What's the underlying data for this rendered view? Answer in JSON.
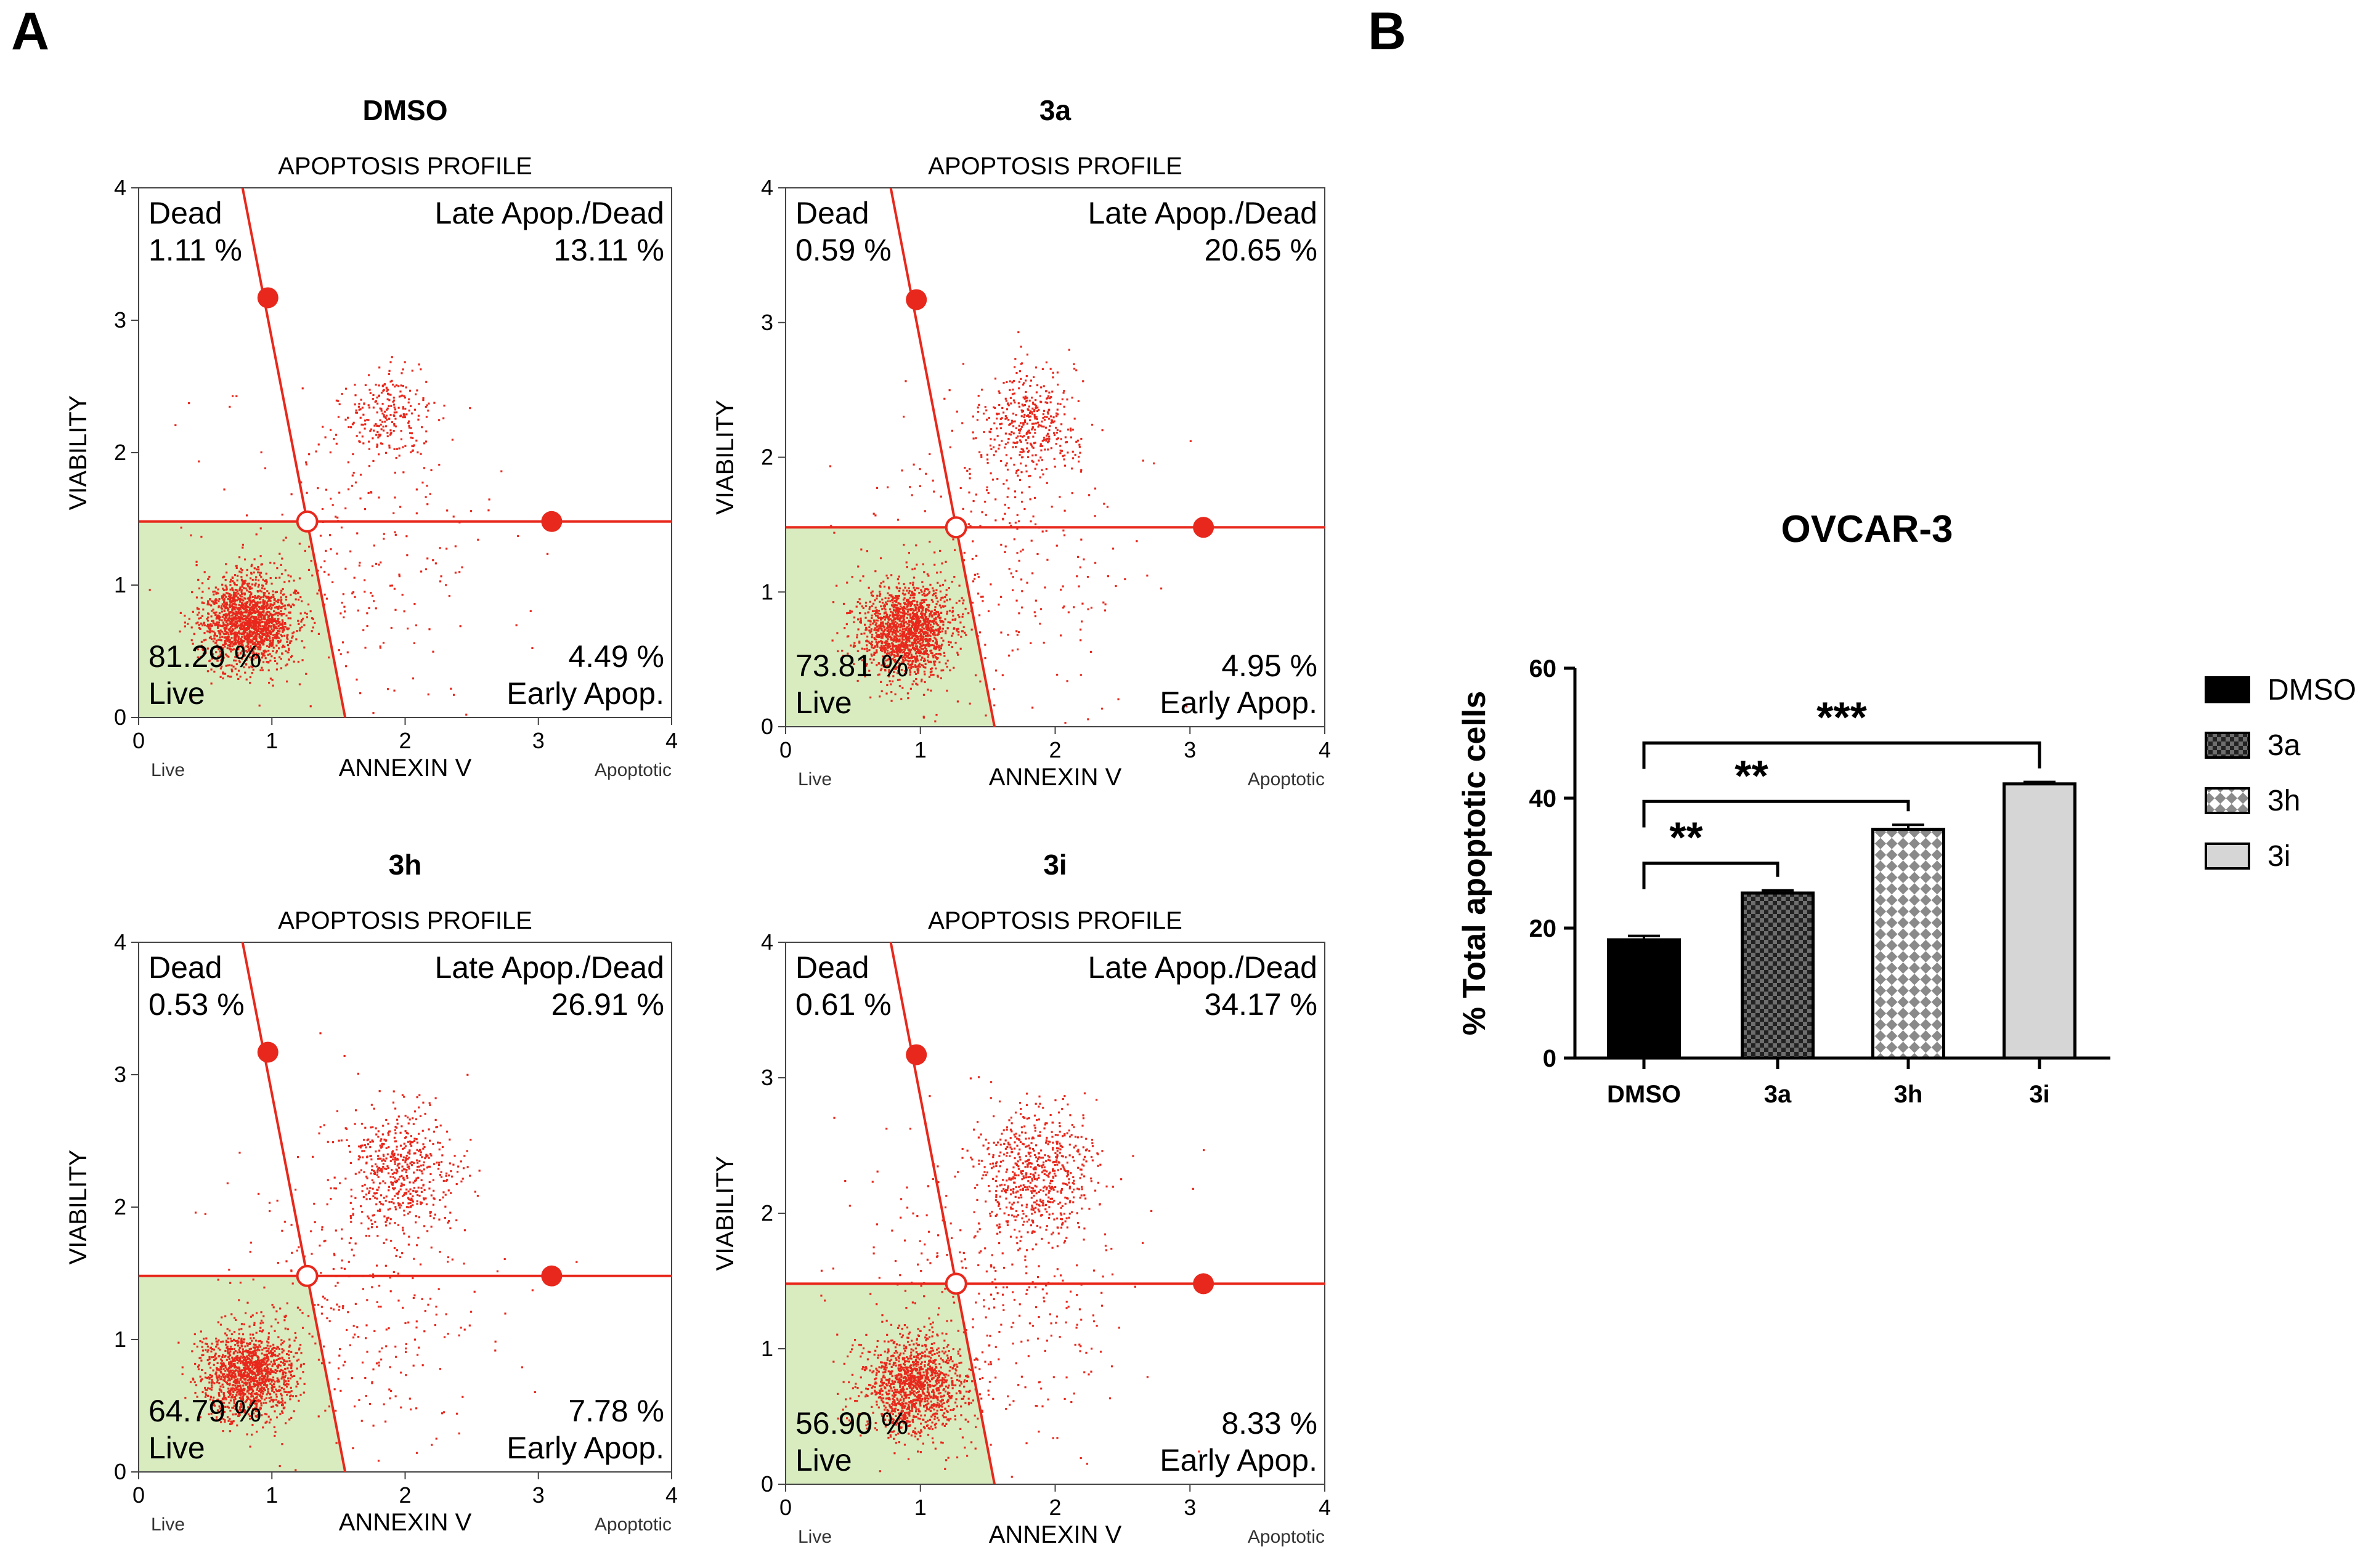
{
  "panel_letters": {
    "a": "A",
    "b": "B"
  },
  "colors": {
    "dot": "#e8281c",
    "gate_line": "#e8281c",
    "live_fill": "#d8ecc0",
    "bar_dmso": "#000000",
    "bar_3i": "#d6d6d6",
    "axis": "#000000"
  },
  "chart_data": [
    {
      "type": "scatter",
      "panel": "A",
      "title": "DMSO",
      "subtitle": "APOPTOSIS PROFILE",
      "xlabel": "ANNEXIN V",
      "ylabel": "VIABILITY",
      "x_left_label": "Live",
      "x_right_label": "Apoptotic",
      "xlim": [
        0,
        4
      ],
      "ylim": [
        0,
        4
      ],
      "xticks": [
        0,
        1,
        2,
        3,
        4
      ],
      "yticks": [
        0,
        1,
        2,
        3,
        4
      ],
      "gate": {
        "cross": [
          1.27,
          1.48
        ],
        "line_top": [
          0.78,
          4.0
        ],
        "line_bottom": [
          1.55,
          0.0
        ],
        "marker_upper": [
          0.97,
          3.17
        ],
        "marker_right": [
          3.1,
          1.48
        ]
      },
      "quadrants": {
        "dead": {
          "name": "Dead",
          "value": "1.11 %"
        },
        "late": {
          "name": "Late Apop./Dead",
          "value": "13.11 %"
        },
        "live": {
          "name": "Live",
          "value": "81.29 %"
        },
        "early": {
          "name": "Early Apop.",
          "value": "4.49 %"
        }
      },
      "populations": [
        {
          "cx": 0.82,
          "cy": 0.73,
          "sx": 0.17,
          "sy": 0.17,
          "n": 1700
        },
        {
          "cx": 1.88,
          "cy": 2.3,
          "sx": 0.16,
          "sy": 0.16,
          "n": 230
        },
        {
          "cx": 1.55,
          "cy": 1.25,
          "sx": 0.55,
          "sy": 0.6,
          "n": 260
        }
      ],
      "seed": 11
    },
    {
      "type": "scatter",
      "panel": "A",
      "title": "3a",
      "subtitle": "APOPTOSIS PROFILE",
      "xlabel": "ANNEXIN V",
      "ylabel": "VIABILITY",
      "x_left_label": "Live",
      "x_right_label": "Apoptotic",
      "xlim": [
        0,
        4
      ],
      "ylim": [
        0,
        4
      ],
      "xticks": [
        0,
        1,
        2,
        3,
        4
      ],
      "yticks": [
        0,
        1,
        2,
        3,
        4
      ],
      "gate": {
        "cross": [
          1.27,
          1.48
        ],
        "line_top": [
          0.78,
          4.0
        ],
        "line_bottom": [
          1.55,
          0.0
        ],
        "marker_upper": [
          0.97,
          3.17
        ],
        "marker_right": [
          3.1,
          1.48
        ]
      },
      "quadrants": {
        "dead": {
          "name": "Dead",
          "value": "0.59 %"
        },
        "late": {
          "name": "Late Apop./Dead",
          "value": "20.65 %"
        },
        "live": {
          "name": "Live",
          "value": "73.81 %"
        },
        "early": {
          "name": "Early Apop.",
          "value": "4.95 %"
        }
      },
      "populations": [
        {
          "cx": 0.88,
          "cy": 0.72,
          "sx": 0.17,
          "sy": 0.17,
          "n": 1550
        },
        {
          "cx": 1.8,
          "cy": 2.25,
          "sx": 0.18,
          "sy": 0.2,
          "n": 380
        },
        {
          "cx": 1.6,
          "cy": 1.3,
          "sx": 0.5,
          "sy": 0.6,
          "n": 300
        }
      ],
      "seed": 23
    },
    {
      "type": "scatter",
      "panel": "A",
      "title": "3h",
      "subtitle": "APOPTOSIS PROFILE",
      "xlabel": "ANNEXIN V",
      "ylabel": "VIABILITY",
      "x_left_label": "Live",
      "x_right_label": "Apoptotic",
      "xlim": [
        0,
        4
      ],
      "ylim": [
        0,
        4
      ],
      "xticks": [
        0,
        1,
        2,
        3,
        4
      ],
      "yticks": [
        0,
        1,
        2,
        3,
        4
      ],
      "gate": {
        "cross": [
          1.27,
          1.48
        ],
        "line_top": [
          0.78,
          4.0
        ],
        "line_bottom": [
          1.55,
          0.0
        ],
        "marker_upper": [
          0.97,
          3.17
        ],
        "marker_right": [
          3.1,
          1.48
        ]
      },
      "quadrants": {
        "dead": {
          "name": "Dead",
          "value": "0.53 %"
        },
        "late": {
          "name": "Late Apop./Dead",
          "value": "26.91 %"
        },
        "live": {
          "name": "Live",
          "value": "64.79 %"
        },
        "early": {
          "name": "Early Apop.",
          "value": "7.78 %"
        }
      },
      "populations": [
        {
          "cx": 0.82,
          "cy": 0.74,
          "sx": 0.17,
          "sy": 0.17,
          "n": 1350
        },
        {
          "cx": 1.95,
          "cy": 2.3,
          "sx": 0.2,
          "sy": 0.22,
          "n": 520
        },
        {
          "cx": 1.6,
          "cy": 1.3,
          "sx": 0.5,
          "sy": 0.6,
          "n": 330
        }
      ],
      "seed": 37
    },
    {
      "type": "scatter",
      "panel": "A",
      "title": "3i",
      "subtitle": "APOPTOSIS PROFILE",
      "xlabel": "ANNEXIN V",
      "ylabel": "VIABILITY",
      "x_left_label": "Live",
      "x_right_label": "Apoptotic",
      "xlim": [
        0,
        4
      ],
      "ylim": [
        0,
        4
      ],
      "xticks": [
        0,
        1,
        2,
        3,
        4
      ],
      "yticks": [
        0,
        1,
        2,
        3,
        4
      ],
      "gate": {
        "cross": [
          1.27,
          1.48
        ],
        "line_top": [
          0.78,
          4.0
        ],
        "line_bottom": [
          1.55,
          0.0
        ],
        "marker_upper": [
          0.97,
          3.17
        ],
        "marker_right": [
          3.1,
          1.48
        ]
      },
      "quadrants": {
        "dead": {
          "name": "Dead",
          "value": "0.61 %"
        },
        "late": {
          "name": "Late Apop./Dead",
          "value": "34.17 %"
        },
        "live": {
          "name": "Live",
          "value": "56.90 %"
        },
        "early": {
          "name": "Early Apop.",
          "value": "8.33 %"
        }
      },
      "populations": [
        {
          "cx": 0.95,
          "cy": 0.72,
          "sx": 0.2,
          "sy": 0.17,
          "n": 1250
        },
        {
          "cx": 1.85,
          "cy": 2.3,
          "sx": 0.22,
          "sy": 0.24,
          "n": 620
        },
        {
          "cx": 1.55,
          "cy": 1.35,
          "sx": 0.5,
          "sy": 0.6,
          "n": 380
        }
      ],
      "seed": 53
    },
    {
      "type": "bar",
      "panel": "B",
      "title": "OVCAR-3",
      "ylabel": "% Total apoptotic cells",
      "xlabel": "",
      "categories": [
        "DMSO",
        "3a",
        "3h",
        "3i"
      ],
      "values": [
        18.2,
        25.4,
        35.2,
        42.2
      ],
      "errors": [
        0.6,
        0.4,
        0.7,
        0.3
      ],
      "ylim": [
        0,
        60
      ],
      "yticks": [
        0,
        20,
        40,
        60
      ],
      "patterns": [
        "solid-black",
        "dense-check",
        "open-check",
        "solid-gray"
      ],
      "legend": [
        "DMSO",
        "3a",
        "3h",
        "3i"
      ],
      "legend_position": "right",
      "significance": [
        {
          "from": "DMSO",
          "to": "3a",
          "label": "**",
          "height": 30
        },
        {
          "from": "DMSO",
          "to": "3h",
          "label": "**",
          "height": 39.5
        },
        {
          "from": "DMSO",
          "to": "3i",
          "label": "***",
          "height": 48.5
        }
      ]
    }
  ]
}
